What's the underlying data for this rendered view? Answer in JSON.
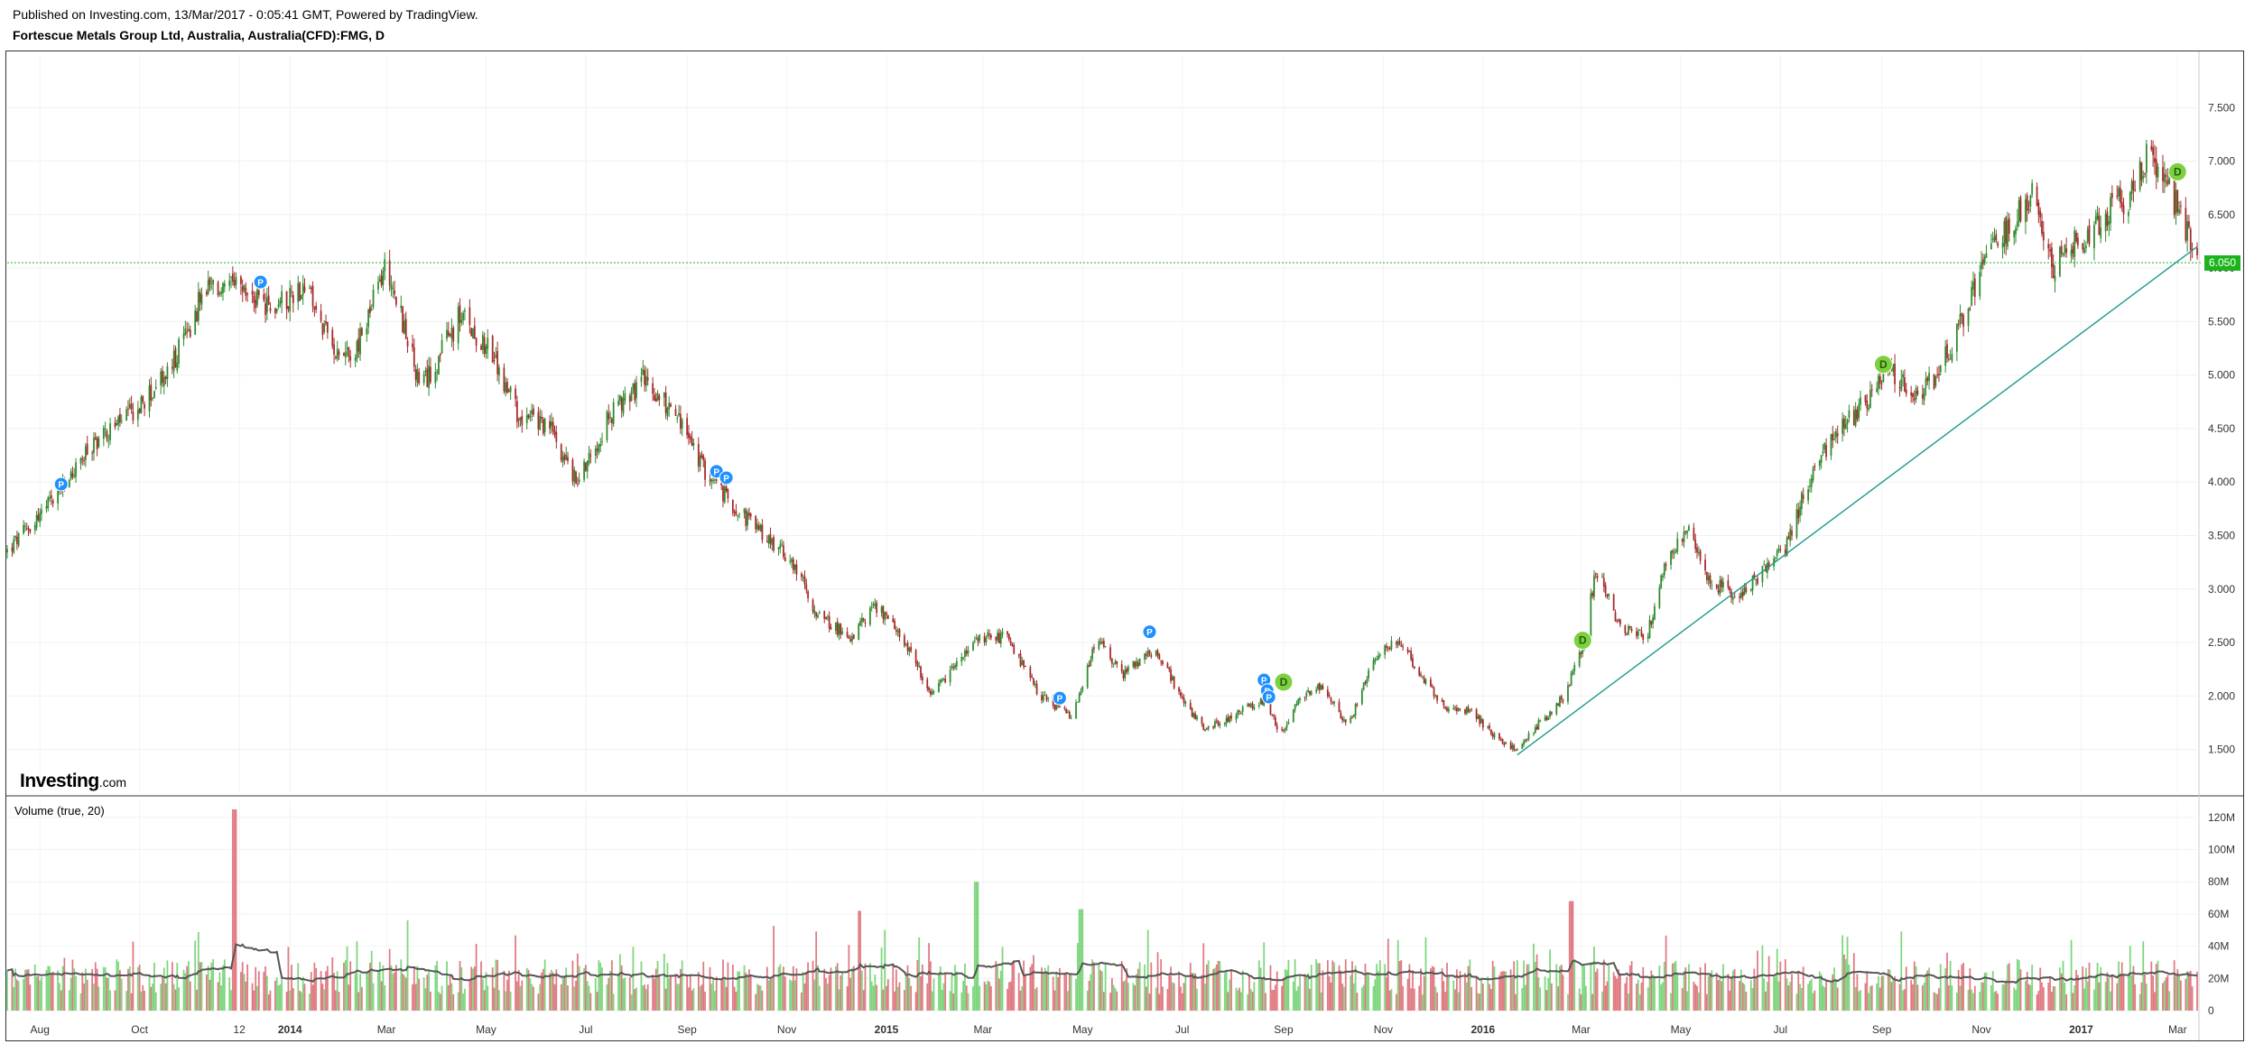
{
  "header": {
    "published": "Published on Investing.com, 13/Mar/2017 - 0:05:41 GMT, Powered by TradingView.",
    "symbol": "Fortescue Metals Group Ltd, Australia, Australia(CFD):FMG, D"
  },
  "logo": {
    "brand": "Investing",
    "suffix": ".com"
  },
  "volume_label": "Volume (true, 20)",
  "last_price_label": "6.050",
  "colors": {
    "up": "#2e8b2e",
    "down": "#a52a2a",
    "vol_up": "#7ed67e",
    "vol_down": "#e07a82",
    "marker_p": "#1e90ff",
    "marker_d": "#7cd13f",
    "trend": "#1a9a8a",
    "price_line": "#1db31d"
  },
  "chart_data": {
    "type": "candlestick",
    "price_axis": {
      "ticks": [
        "1.500",
        "2.000",
        "2.500",
        "3.000",
        "3.500",
        "4.000",
        "4.500",
        "5.000",
        "5.500",
        "6.000",
        "6.500",
        "7.000",
        "7.500"
      ],
      "range": [
        1.1,
        8.0
      ]
    },
    "volume_axis": {
      "ticks": [
        "0",
        "20M",
        "40M",
        "60M",
        "80M",
        "100M",
        "120M"
      ],
      "range": [
        0,
        130
      ]
    },
    "time_axis": {
      "range": [
        "2013-07-12",
        "2017-03-13"
      ],
      "ticks": [
        {
          "label": "Aug",
          "date": "2013-08-01",
          "bold": false
        },
        {
          "label": "Oct",
          "date": "2013-10-01",
          "bold": false
        },
        {
          "label": "12",
          "date": "2013-12-01",
          "bold": false
        },
        {
          "label": "2014",
          "date": "2014-01-01",
          "bold": true
        },
        {
          "label": "Mar",
          "date": "2014-03-01",
          "bold": false
        },
        {
          "label": "May",
          "date": "2014-05-01",
          "bold": false
        },
        {
          "label": "Jul",
          "date": "2014-07-01",
          "bold": false
        },
        {
          "label": "Sep",
          "date": "2014-09-01",
          "bold": false
        },
        {
          "label": "Nov",
          "date": "2014-11-01",
          "bold": false
        },
        {
          "label": "2015",
          "date": "2015-01-01",
          "bold": true
        },
        {
          "label": "Mar",
          "date": "2015-03-01",
          "bold": false
        },
        {
          "label": "May",
          "date": "2015-05-01",
          "bold": false
        },
        {
          "label": "Jul",
          "date": "2015-07-01",
          "bold": false
        },
        {
          "label": "Sep",
          "date": "2015-09-01",
          "bold": false
        },
        {
          "label": "Nov",
          "date": "2015-11-01",
          "bold": false
        },
        {
          "label": "2016",
          "date": "2016-01-01",
          "bold": true
        },
        {
          "label": "Mar",
          "date": "2016-03-01",
          "bold": false
        },
        {
          "label": "May",
          "date": "2016-05-01",
          "bold": false
        },
        {
          "label": "Jul",
          "date": "2016-07-01",
          "bold": false
        },
        {
          "label": "Sep",
          "date": "2016-09-01",
          "bold": false
        },
        {
          "label": "Nov",
          "date": "2016-11-01",
          "bold": false
        },
        {
          "label": "2017",
          "date": "2017-01-01",
          "bold": true
        },
        {
          "label": "Mar",
          "date": "2017-03-01",
          "bold": false
        }
      ]
    },
    "price_path": [
      [
        "2013-07-12",
        3.35
      ],
      [
        "2013-08-10",
        3.85
      ],
      [
        "2013-09-05",
        4.4
      ],
      [
        "2013-10-01",
        4.7
      ],
      [
        "2013-10-20",
        5.05
      ],
      [
        "2013-11-10",
        5.8
      ],
      [
        "2013-12-01",
        5.8
      ],
      [
        "2013-12-20",
        5.6
      ],
      [
        "2014-01-10",
        5.85
      ],
      [
        "2014-01-25",
        5.3
      ],
      [
        "2014-02-10",
        5.2
      ],
      [
        "2014-03-01",
        6.05
      ],
      [
        "2014-03-12",
        5.45
      ],
      [
        "2014-03-22",
        4.85
      ],
      [
        "2014-04-15",
        5.55
      ],
      [
        "2014-05-01",
        5.3
      ],
      [
        "2014-05-20",
        4.65
      ],
      [
        "2014-06-10",
        4.5
      ],
      [
        "2014-06-25",
        4.0
      ],
      [
        "2014-07-15",
        4.6
      ],
      [
        "2014-08-05",
        4.95
      ],
      [
        "2014-08-25",
        4.65
      ],
      [
        "2014-09-10",
        4.15
      ],
      [
        "2014-09-25",
        3.85
      ],
      [
        "2014-10-15",
        3.55
      ],
      [
        "2014-11-05",
        3.25
      ],
      [
        "2014-11-20",
        2.75
      ],
      [
        "2014-12-10",
        2.55
      ],
      [
        "2014-12-25",
        2.85
      ],
      [
        "2015-01-15",
        2.45
      ],
      [
        "2015-01-28",
        1.98
      ],
      [
        "2015-02-15",
        2.35
      ],
      [
        "2015-03-01",
        2.55
      ],
      [
        "2015-03-15",
        2.55
      ],
      [
        "2015-04-05",
        2.0
      ],
      [
        "2015-04-25",
        1.8
      ],
      [
        "2015-05-10",
        2.55
      ],
      [
        "2015-05-25",
        2.2
      ],
      [
        "2015-06-15",
        2.45
      ],
      [
        "2015-07-01",
        1.95
      ],
      [
        "2015-07-15",
        1.68
      ],
      [
        "2015-08-05",
        1.85
      ],
      [
        "2015-08-20",
        1.95
      ],
      [
        "2015-08-30",
        1.65
      ],
      [
        "2015-09-10",
        1.95
      ],
      [
        "2015-09-25",
        2.1
      ],
      [
        "2015-10-10",
        1.7
      ],
      [
        "2015-10-25",
        2.3
      ],
      [
        "2015-11-10",
        2.55
      ],
      [
        "2015-11-25",
        2.15
      ],
      [
        "2015-12-10",
        1.9
      ],
      [
        "2015-12-25",
        1.85
      ],
      [
        "2016-01-10",
        1.6
      ],
      [
        "2016-01-20",
        1.5
      ],
      [
        "2016-02-05",
        1.75
      ],
      [
        "2016-02-20",
        2.0
      ],
      [
        "2016-03-03",
        2.5
      ],
      [
        "2016-03-10",
        3.2
      ],
      [
        "2016-03-25",
        2.65
      ],
      [
        "2016-04-10",
        2.55
      ],
      [
        "2016-04-22",
        3.25
      ],
      [
        "2016-05-05",
        3.55
      ],
      [
        "2016-05-20",
        3.05
      ],
      [
        "2016-06-05",
        2.95
      ],
      [
        "2016-06-20",
        3.15
      ],
      [
        "2016-07-05",
        3.4
      ],
      [
        "2016-07-20",
        4.1
      ],
      [
        "2016-08-05",
        4.45
      ],
      [
        "2016-08-22",
        4.75
      ],
      [
        "2016-09-05",
        5.1
      ],
      [
        "2016-09-20",
        4.8
      ],
      [
        "2016-10-05",
        5.0
      ],
      [
        "2016-10-20",
        5.5
      ],
      [
        "2016-11-05",
        6.1
      ],
      [
        "2016-11-15",
        6.3
      ],
      [
        "2016-12-01",
        6.7
      ],
      [
        "2016-12-15",
        6.0
      ],
      [
        "2016-12-30",
        6.25
      ],
      [
        "2017-01-15",
        6.5
      ],
      [
        "2017-02-01",
        6.7
      ],
      [
        "2017-02-12",
        7.1
      ],
      [
        "2017-02-22",
        6.75
      ],
      [
        "2017-03-05",
        6.45
      ],
      [
        "2017-03-13",
        6.05
      ]
    ],
    "last_price": 6.05,
    "trendline": [
      [
        "2016-01-22",
        1.45
      ],
      [
        "2017-03-13",
        6.2
      ]
    ],
    "markers": [
      {
        "type": "P",
        "date": "2013-08-14",
        "price": 3.98
      },
      {
        "type": "P",
        "date": "2013-12-14",
        "price": 5.87
      },
      {
        "type": "P",
        "date": "2014-09-19",
        "price": 4.1
      },
      {
        "type": "P",
        "date": "2014-09-25",
        "price": 4.04
      },
      {
        "type": "P",
        "date": "2015-04-17",
        "price": 1.98
      },
      {
        "type": "P",
        "date": "2015-06-11",
        "price": 2.6
      },
      {
        "type": "P",
        "date": "2015-08-20",
        "price": 2.15
      },
      {
        "type": "P",
        "date": "2015-08-22",
        "price": 2.05
      },
      {
        "type": "P",
        "date": "2015-08-23",
        "price": 1.99
      },
      {
        "type": "D",
        "date": "2015-09-01",
        "price": 2.13
      },
      {
        "type": "D",
        "date": "2016-03-02",
        "price": 2.52
      },
      {
        "type": "D",
        "date": "2016-09-02",
        "price": 5.1
      },
      {
        "type": "D",
        "date": "2017-03-01",
        "price": 6.9
      }
    ],
    "volume_spikes": [
      {
        "date": "2013-11-28",
        "value": 125,
        "dir": "down"
      },
      {
        "date": "2015-02-25",
        "value": 80,
        "dir": "up"
      },
      {
        "date": "2016-02-24",
        "value": 68,
        "dir": "down"
      },
      {
        "date": "2014-03-15",
        "value": 56,
        "dir": "up"
      },
      {
        "date": "2014-12-15",
        "value": 62,
        "dir": "down"
      },
      {
        "date": "2015-04-30",
        "value": 63,
        "dir": "up"
      }
    ],
    "volume_typical": "≈20M",
    "ma_period": 20
  }
}
